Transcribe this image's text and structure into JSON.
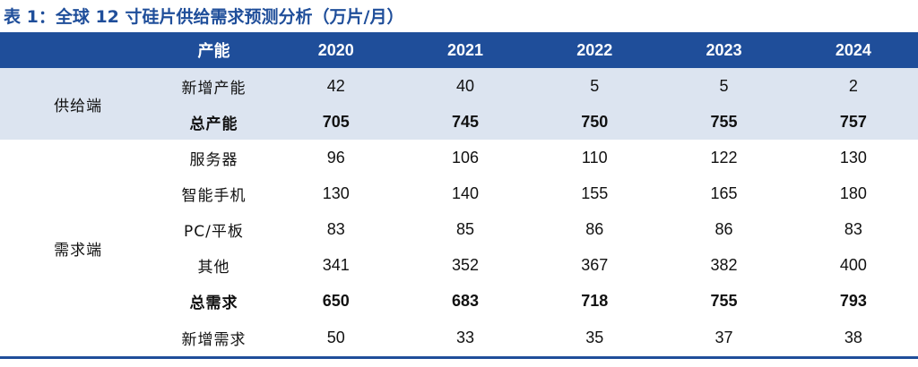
{
  "title": "表 1：全球 12 寸硅片供给需求预测分析（万片/月）",
  "header": {
    "item_label": "产能",
    "years": [
      "2020",
      "2021",
      "2022",
      "2023",
      "2024"
    ]
  },
  "supply": {
    "group_label": "供给端",
    "rows": [
      {
        "label": "新增产能",
        "values": [
          "42",
          "40",
          "5",
          "5",
          "2"
        ],
        "bold": false
      },
      {
        "label": "总产能",
        "values": [
          "705",
          "745",
          "750",
          "755",
          "757"
        ],
        "bold": true
      }
    ]
  },
  "demand": {
    "group_label": "需求端",
    "rows": [
      {
        "label": "服务器",
        "values": [
          "96",
          "106",
          "110",
          "122",
          "130"
        ],
        "bold": false
      },
      {
        "label": "智能手机",
        "values": [
          "130",
          "140",
          "155",
          "165",
          "180"
        ],
        "bold": false
      },
      {
        "label": "PC/平板",
        "values": [
          "83",
          "85",
          "86",
          "86",
          "83"
        ],
        "bold": false
      },
      {
        "label": "其他",
        "values": [
          "341",
          "352",
          "367",
          "382",
          "400"
        ],
        "bold": false
      },
      {
        "label": "总需求",
        "values": [
          "650",
          "683",
          "718",
          "755",
          "793"
        ],
        "bold": true
      },
      {
        "label": "新增需求",
        "values": [
          "50",
          "33",
          "35",
          "37",
          "38"
        ],
        "bold": false
      }
    ]
  },
  "colors": {
    "header_bg": "#1f4e9a",
    "supply_bg": "#dce4f0",
    "title_text": "#1f4e9a"
  }
}
